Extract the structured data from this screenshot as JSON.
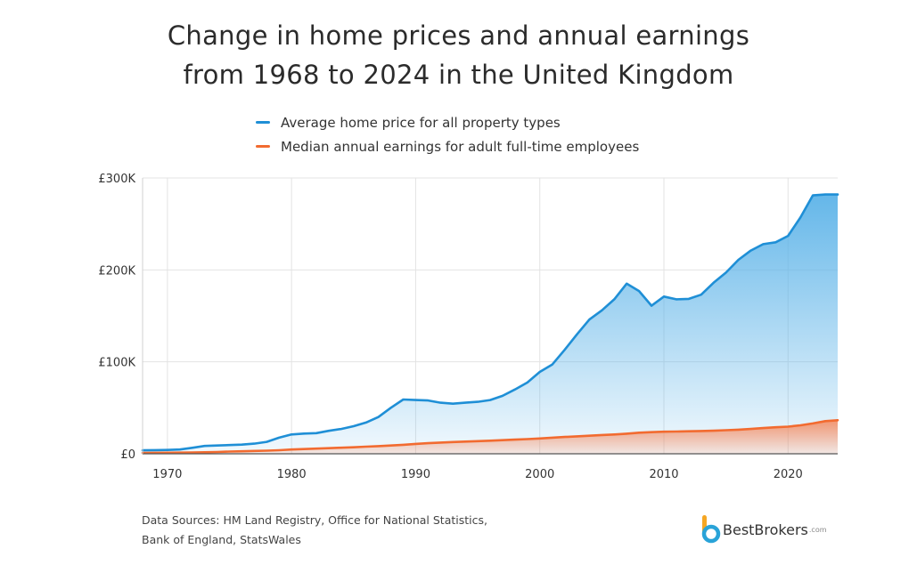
{
  "title_line1": "Change in home prices and annual earnings",
  "title_line2": "from 1968 to 2024 in the United Kingdom",
  "legend": [
    {
      "label": "Average home price for all property types",
      "color": "#1f8fd6"
    },
    {
      "label": "Median annual earnings for adult full-time employees",
      "color": "#f26b30"
    }
  ],
  "footer_line1": "Data Sources: HM Land Registry, Office for National Statistics,",
  "footer_line2": "Bank of England, StatsWales",
  "brand": {
    "name": "BestBrokers",
    "domain": ".com",
    "icon": "bestbrokers-logo-icon"
  },
  "chart_data": {
    "type": "area",
    "xlim": [
      1968,
      2024
    ],
    "ylim": [
      0,
      300000
    ],
    "x_ticks": [
      1970,
      1980,
      1990,
      2000,
      2010,
      2020
    ],
    "y_ticks": [
      0,
      100000,
      200000,
      300000
    ],
    "y_tick_labels": [
      "£0",
      "£100K",
      "£200K",
      "£300K"
    ],
    "grid": true,
    "legend_position": "top",
    "x": [
      1968,
      1969,
      1970,
      1971,
      1972,
      1973,
      1974,
      1975,
      1976,
      1977,
      1978,
      1979,
      1980,
      1981,
      1982,
      1983,
      1984,
      1985,
      1986,
      1987,
      1988,
      1989,
      1990,
      1991,
      1992,
      1993,
      1994,
      1995,
      1996,
      1997,
      1998,
      1999,
      2000,
      2001,
      2002,
      2003,
      2004,
      2005,
      2006,
      2007,
      2008,
      2009,
      2010,
      2011,
      2012,
      2013,
      2014,
      2015,
      2016,
      2017,
      2018,
      2019,
      2020,
      2021,
      2022,
      2023,
      2024
    ],
    "series": [
      {
        "name": "Average home price for all property types",
        "color": "#1f8fd6",
        "values": [
          3800,
          4000,
          4200,
          4600,
          6500,
          8500,
          9000,
          9500,
          10000,
          11000,
          13000,
          17500,
          21000,
          22000,
          22500,
          25000,
          27000,
          30000,
          34000,
          40000,
          50000,
          59000,
          58500,
          58000,
          55500,
          54500,
          55500,
          56500,
          58500,
          63000,
          70000,
          77500,
          89000,
          97000,
          113000,
          130000,
          146000,
          156000,
          168000,
          185000,
          177000,
          161000,
          171000,
          168000,
          168500,
          173000,
          186000,
          197000,
          211000,
          221000,
          228000,
          230000,
          237000,
          257000,
          281000,
          282000,
          282000
        ]
      },
      {
        "name": "Median annual earnings for adult full-time employees",
        "color": "#f26b30",
        "values": [
          1000,
          1100,
          1200,
          1300,
          1450,
          1650,
          1950,
          2400,
          2750,
          3050,
          3400,
          3900,
          4600,
          5150,
          5650,
          6100,
          6600,
          7100,
          7700,
          8300,
          9000,
          9800,
          10700,
          11500,
          12200,
          12800,
          13300,
          13700,
          14200,
          14800,
          15400,
          16000,
          16600,
          17500,
          18300,
          19000,
          19600,
          20400,
          21000,
          21900,
          22900,
          23500,
          24000,
          24200,
          24500,
          24800,
          25100,
          25600,
          26200,
          27000,
          28000,
          28800,
          29500,
          31000,
          33000,
          35500,
          36500
        ]
      }
    ]
  }
}
